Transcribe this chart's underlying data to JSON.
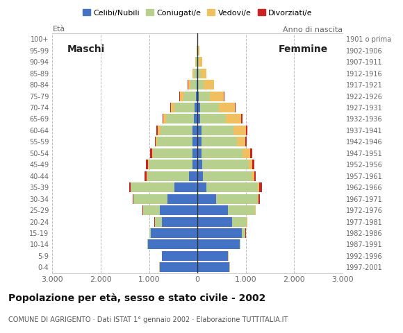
{
  "age_groups": [
    "0-4",
    "5-9",
    "10-14",
    "15-19",
    "20-24",
    "25-29",
    "30-34",
    "35-39",
    "40-44",
    "45-49",
    "50-54",
    "55-59",
    "60-64",
    "65-69",
    "70-74",
    "75-79",
    "80-84",
    "85-89",
    "90-94",
    "95-99",
    "100+"
  ],
  "birth_years": [
    "1997-2001",
    "1992-1996",
    "1987-1991",
    "1982-1986",
    "1977-1981",
    "1972-1976",
    "1967-1971",
    "1962-1966",
    "1957-1961",
    "1952-1956",
    "1947-1951",
    "1942-1946",
    "1937-1941",
    "1932-1936",
    "1927-1931",
    "1922-1926",
    "1917-1921",
    "1912-1916",
    "1907-1911",
    "1902-1906",
    "1901 o prima"
  ],
  "male_celibi": [
    780,
    730,
    1020,
    960,
    730,
    780,
    620,
    480,
    180,
    110,
    100,
    110,
    100,
    80,
    55,
    30,
    20,
    12,
    8,
    5,
    2
  ],
  "male_coniugati": [
    5,
    5,
    12,
    30,
    150,
    340,
    700,
    900,
    860,
    900,
    820,
    720,
    670,
    570,
    420,
    260,
    130,
    60,
    20,
    8,
    3
  ],
  "male_vedovi": [
    2,
    2,
    2,
    2,
    2,
    3,
    3,
    5,
    8,
    10,
    15,
    28,
    48,
    55,
    75,
    75,
    45,
    28,
    18,
    5,
    2
  ],
  "male_divorziati": [
    0,
    0,
    0,
    2,
    5,
    10,
    22,
    30,
    50,
    40,
    40,
    28,
    30,
    20,
    10,
    5,
    5,
    0,
    0,
    0,
    0
  ],
  "female_nubili": [
    660,
    630,
    870,
    920,
    720,
    630,
    380,
    190,
    110,
    95,
    78,
    80,
    78,
    58,
    48,
    25,
    18,
    12,
    8,
    5,
    2
  ],
  "female_coniugate": [
    5,
    5,
    16,
    70,
    300,
    560,
    860,
    1060,
    1010,
    960,
    860,
    730,
    660,
    530,
    390,
    230,
    110,
    55,
    18,
    8,
    3
  ],
  "female_vedove": [
    2,
    2,
    2,
    5,
    6,
    10,
    22,
    32,
    52,
    82,
    145,
    185,
    260,
    310,
    330,
    290,
    210,
    110,
    65,
    22,
    5
  ],
  "female_divorziate": [
    0,
    0,
    0,
    2,
    5,
    10,
    22,
    52,
    32,
    32,
    52,
    22,
    32,
    30,
    20,
    10,
    10,
    5,
    2,
    0,
    0
  ],
  "colors": {
    "celibi": "#4472c4",
    "coniugati": "#b8d08d",
    "vedovi": "#f0c060",
    "divorziati": "#cc2222"
  },
  "xlim": 3000,
  "title": "Popolazione per età, sesso e stato civile - 2002",
  "subtitle": "COMUNE DI AGRIGENTO · Dati ISTAT 1° gennaio 2002 · Elaborazione TUTTITALIA.IT",
  "legend_labels": [
    "Celibi/Nubili",
    "Coniugati/e",
    "Vedovi/e",
    "Divorziati/e"
  ],
  "label_maschi": "Maschi",
  "label_femmine": "Femmine",
  "label_eta": "Età",
  "label_anno": "Anno di nascita"
}
